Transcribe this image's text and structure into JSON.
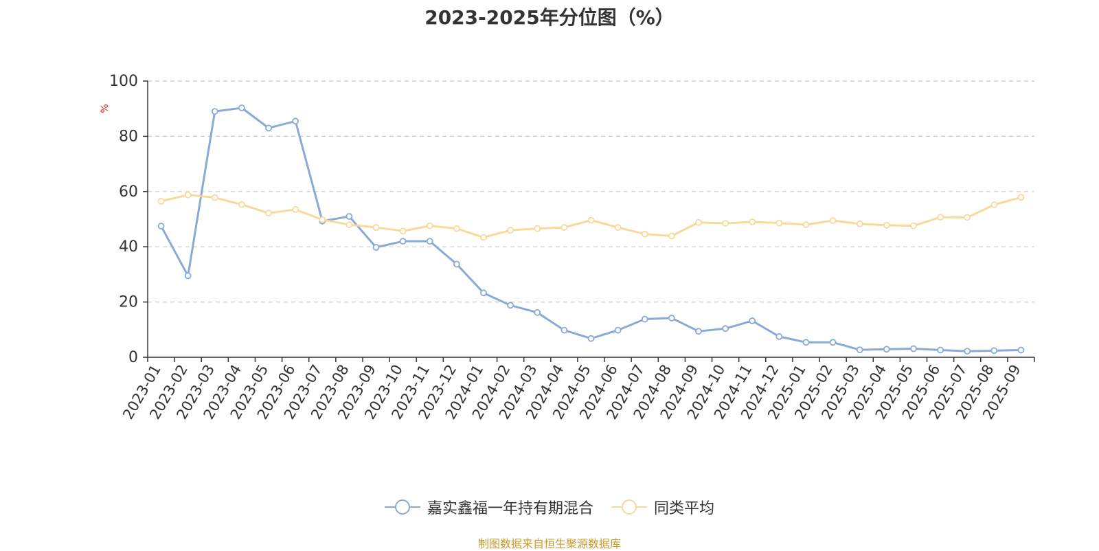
{
  "chart_data": {
    "type": "line",
    "title": "2023-2025年分位图（%）",
    "ylabel": "%",
    "xlabel": "",
    "ylim": [
      0,
      100
    ],
    "yticks": [
      0,
      20,
      40,
      60,
      80,
      100
    ],
    "grid": true,
    "legend_position": "bottom",
    "categories": [
      "2023-01",
      "2023-02",
      "2023-03",
      "2023-04",
      "2023-05",
      "2023-06",
      "2023-07",
      "2023-08",
      "2023-09",
      "2023-10",
      "2023-11",
      "2023-12",
      "2024-01",
      "2024-02",
      "2024-03",
      "2024-04",
      "2024-05",
      "2024-06",
      "2024-07",
      "2024-08",
      "2024-09",
      "2024-10",
      "2024-11",
      "2024-12",
      "2025-01",
      "2025-02",
      "2025-03",
      "2025-04",
      "2025-05",
      "2025-06",
      "2025-07",
      "2025-08",
      "2025-09"
    ],
    "series": [
      {
        "name": "嘉实鑫福一年持有期混合",
        "color": "#8aaad6",
        "values": [
          47.5,
          29.5,
          89.0,
          90.3,
          83.0,
          85.5,
          49.3,
          51.0,
          39.8,
          42.0,
          42.0,
          33.7,
          23.3,
          18.8,
          16.2,
          9.8,
          6.8,
          9.8,
          13.8,
          14.2,
          9.4,
          10.4,
          13.2,
          7.5,
          5.4,
          5.4,
          2.7,
          2.9,
          3.1,
          2.6,
          2.2,
          2.4,
          2.6
        ]
      },
      {
        "name": "同类平均",
        "color": "#f9d99a",
        "values": [
          56.5,
          58.8,
          57.8,
          55.3,
          52.2,
          53.5,
          49.8,
          48.0,
          47.0,
          45.7,
          47.6,
          46.6,
          43.4,
          46.0,
          46.6,
          47.0,
          49.6,
          47.0,
          44.6,
          43.9,
          48.8,
          48.5,
          49.0,
          48.6,
          48.0,
          49.5,
          48.3,
          47.8,
          47.6,
          50.7,
          50.6,
          55.2,
          57.9
        ]
      }
    ]
  },
  "footer": {
    "source_note": "制图数据来自恒生聚源数据库"
  }
}
